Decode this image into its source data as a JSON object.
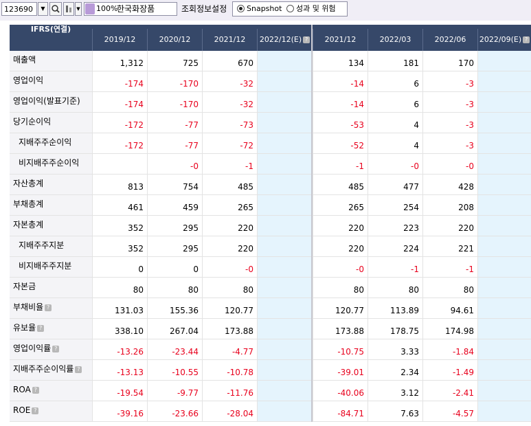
{
  "toolbar": {
    "stock_code": "123690",
    "zoom": "100%",
    "company": "한국화장품",
    "settings_label": "조회정보설정",
    "radio_options": [
      {
        "label": "Snapshot",
        "selected": true
      },
      {
        "label": "성과 및 위험",
        "selected": false
      }
    ]
  },
  "table": {
    "corner_label": "IFRS(연결)",
    "columns": [
      "2019/12",
      "2020/12",
      "2021/12",
      "2022/12(E)",
      "2021/12",
      "2022/03",
      "2022/06",
      "2022/09(E)"
    ],
    "estimate_columns": [
      3,
      7
    ],
    "rows": [
      {
        "label": "매출액",
        "indent": false,
        "help": false,
        "values": [
          "1,312",
          "725",
          "670",
          "",
          "134",
          "181",
          "170",
          ""
        ]
      },
      {
        "label": "영업이익",
        "indent": false,
        "help": false,
        "values": [
          "-174",
          "-170",
          "-32",
          "",
          "-14",
          "6",
          "-3",
          ""
        ]
      },
      {
        "label": "영업이익(발표기준)",
        "indent": false,
        "help": false,
        "values": [
          "-174",
          "-170",
          "-32",
          "",
          "-14",
          "6",
          "-3",
          ""
        ]
      },
      {
        "label": "당기순이익",
        "indent": false,
        "help": false,
        "values": [
          "-172",
          "-77",
          "-73",
          "",
          "-53",
          "4",
          "-3",
          ""
        ]
      },
      {
        "label": "지배주주순이익",
        "indent": true,
        "help": false,
        "values": [
          "-172",
          "-77",
          "-72",
          "",
          "-52",
          "4",
          "-3",
          ""
        ]
      },
      {
        "label": "비지배주주순이익",
        "indent": true,
        "help": false,
        "values": [
          "",
          "-0",
          "-1",
          "",
          "-1",
          "-0",
          "-0",
          ""
        ]
      },
      {
        "label": "자산총계",
        "indent": false,
        "help": false,
        "values": [
          "813",
          "754",
          "485",
          "",
          "485",
          "477",
          "428",
          ""
        ]
      },
      {
        "label": "부채총계",
        "indent": false,
        "help": false,
        "values": [
          "461",
          "459",
          "265",
          "",
          "265",
          "254",
          "208",
          ""
        ]
      },
      {
        "label": "자본총계",
        "indent": false,
        "help": false,
        "values": [
          "352",
          "295",
          "220",
          "",
          "220",
          "223",
          "220",
          ""
        ]
      },
      {
        "label": "지배주주지분",
        "indent": true,
        "help": false,
        "values": [
          "352",
          "295",
          "220",
          "",
          "220",
          "224",
          "221",
          ""
        ]
      },
      {
        "label": "비지배주주지분",
        "indent": true,
        "help": false,
        "values": [
          "0",
          "0",
          "-0",
          "",
          "-0",
          "-1",
          "-1",
          ""
        ]
      },
      {
        "label": "자본금",
        "indent": false,
        "help": false,
        "values": [
          "80",
          "80",
          "80",
          "",
          "80",
          "80",
          "80",
          ""
        ]
      },
      {
        "label": "부채비율",
        "indent": false,
        "help": true,
        "values": [
          "131.03",
          "155.36",
          "120.77",
          "",
          "120.77",
          "113.89",
          "94.61",
          ""
        ]
      },
      {
        "label": "유보율",
        "indent": false,
        "help": true,
        "values": [
          "338.10",
          "267.04",
          "173.88",
          "",
          "173.88",
          "178.75",
          "174.98",
          ""
        ]
      },
      {
        "label": "영업이익률",
        "indent": false,
        "help": true,
        "values": [
          "-13.26",
          "-23.44",
          "-4.77",
          "",
          "-10.75",
          "3.33",
          "-1.84",
          ""
        ]
      },
      {
        "label": "지배주주순이익률",
        "indent": false,
        "help": true,
        "values": [
          "-13.13",
          "-10.55",
          "-10.78",
          "",
          "-39.01",
          "2.34",
          "-1.49",
          ""
        ]
      },
      {
        "label": "ROA",
        "indent": false,
        "help": true,
        "values": [
          "-19.54",
          "-9.77",
          "-11.76",
          "",
          "-40.06",
          "3.12",
          "-2.41",
          ""
        ]
      },
      {
        "label": "ROE",
        "indent": false,
        "help": true,
        "values": [
          "-39.16",
          "-23.66",
          "-28.04",
          "",
          "-84.71",
          "7.63",
          "-4.57",
          ""
        ]
      }
    ]
  },
  "colors": {
    "header_bg": "#364869",
    "negative": "#e8001c",
    "estimate_bg": "#e5f4fd",
    "label_bg": "#f4f4f7"
  }
}
